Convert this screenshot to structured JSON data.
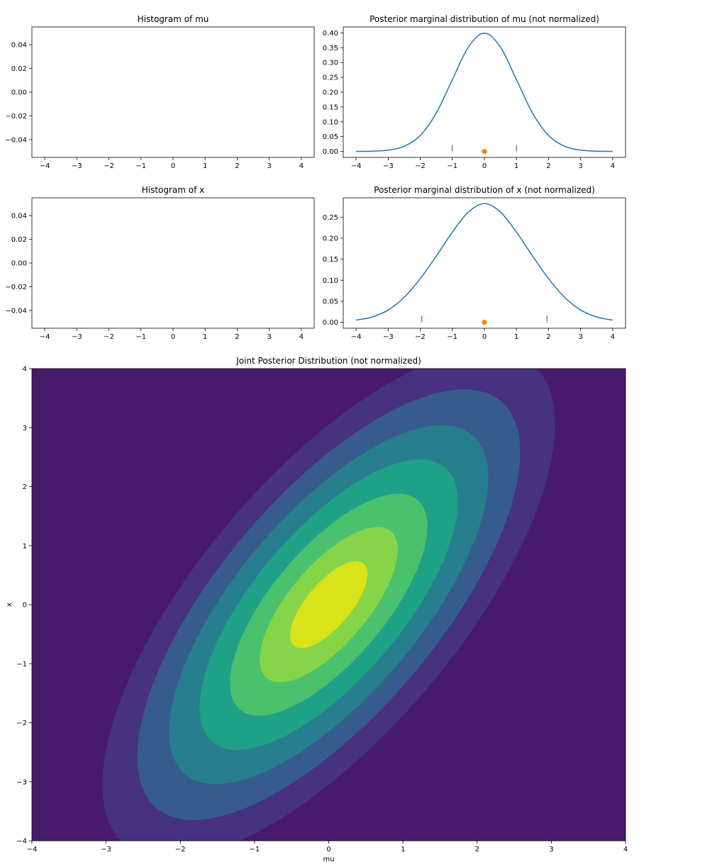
{
  "chart_data": [
    {
      "id": "hist-mu",
      "type": "histogram",
      "title": "Histogram of mu",
      "xlim": [
        -4.4,
        4.4
      ],
      "ylim": [
        -0.055,
        0.055
      ],
      "xticks": [
        -4,
        -3,
        -2,
        -1,
        0,
        1,
        2,
        3,
        4
      ],
      "xtick_labels": [
        "−4",
        "−3",
        "−2",
        "−1",
        "0",
        "1",
        "2",
        "3",
        "4"
      ],
      "yticks": [
        -0.04,
        -0.02,
        0.0,
        0.02,
        0.04
      ],
      "ytick_labels": [
        "−0.04",
        "−0.02",
        "0.00",
        "0.02",
        "0.04"
      ],
      "values": []
    },
    {
      "id": "post-mu",
      "type": "line",
      "title": "Posterior marginal distribution of mu (not normalized)",
      "xlim": [
        -4.4,
        4.4
      ],
      "ylim": [
        -0.02,
        0.42
      ],
      "xticks": [
        -4,
        -3,
        -2,
        -1,
        0,
        1,
        2,
        3,
        4
      ],
      "xtick_labels": [
        "−4",
        "−3",
        "−2",
        "−1",
        "0",
        "1",
        "2",
        "3",
        "4"
      ],
      "yticks": [
        0.0,
        0.05,
        0.1,
        0.15,
        0.2,
        0.25,
        0.3,
        0.35,
        0.4
      ],
      "ytick_labels": [
        "0.00",
        "0.05",
        "0.10",
        "0.15",
        "0.20",
        "0.25",
        "0.30",
        "0.35",
        "0.40"
      ],
      "series": [
        {
          "color": "#1f77b4",
          "x": [
            -4,
            -3.5,
            -3,
            -2.5,
            -2,
            -1.5,
            -1,
            -0.5,
            0,
            0.5,
            1,
            1.5,
            2,
            2.5,
            3,
            3.5,
            4
          ],
          "y": [
            0.0001,
            0.0009,
            0.0044,
            0.0175,
            0.054,
            0.1295,
            0.242,
            0.352,
            0.399,
            0.352,
            0.242,
            0.1295,
            0.054,
            0.0175,
            0.0044,
            0.0009,
            0.0001
          ]
        }
      ],
      "point": {
        "x": 0,
        "y": 0,
        "color": "#ff7f0e"
      },
      "vlines": {
        "x": [
          -1,
          1
        ],
        "y0": 0,
        "y1": 0.022,
        "color": "#008000"
      }
    },
    {
      "id": "hist-x",
      "type": "histogram",
      "title": "Histogram of x",
      "xlim": [
        -4.4,
        4.4
      ],
      "ylim": [
        -0.055,
        0.055
      ],
      "xticks": [
        -4,
        -3,
        -2,
        -1,
        0,
        1,
        2,
        3,
        4
      ],
      "xtick_labels": [
        "−4",
        "−3",
        "−2",
        "−1",
        "0",
        "1",
        "2",
        "3",
        "4"
      ],
      "yticks": [
        -0.04,
        -0.02,
        0.0,
        0.02,
        0.04
      ],
      "ytick_labels": [
        "−0.04",
        "−0.02",
        "0.00",
        "0.02",
        "0.04"
      ],
      "values": []
    },
    {
      "id": "post-x",
      "type": "line",
      "title": "Posterior marginal distribution of x (not normalized)",
      "xlim": [
        -4.4,
        4.4
      ],
      "ylim": [
        -0.0141,
        0.296
      ],
      "xticks": [
        -4,
        -3,
        -2,
        -1,
        0,
        1,
        2,
        3,
        4
      ],
      "xtick_labels": [
        "−4",
        "−3",
        "−2",
        "−1",
        "0",
        "1",
        "2",
        "3",
        "4"
      ],
      "yticks": [
        0.0,
        0.05,
        0.1,
        0.15,
        0.2,
        0.25
      ],
      "ytick_labels": [
        "0.00",
        "0.05",
        "0.10",
        "0.15",
        "0.20",
        "0.25"
      ],
      "series": [
        {
          "color": "#1f77b4",
          "x": [
            -4,
            -3.5,
            -3,
            -2.5,
            -2,
            -1.5,
            -1,
            -0.5,
            0,
            0.5,
            1,
            1.5,
            2,
            2.5,
            3,
            3.5,
            4
          ],
          "y": [
            0.0052,
            0.0127,
            0.0292,
            0.0594,
            0.1037,
            0.1576,
            0.2141,
            0.2622,
            0.2821,
            0.2622,
            0.2141,
            0.1576,
            0.1037,
            0.0594,
            0.0292,
            0.0127,
            0.0052
          ]
        }
      ],
      "point": {
        "x": 0,
        "y": 0,
        "color": "#ff7f0e"
      },
      "vlines": {
        "x": [
          -1.95,
          1.95
        ],
        "y0": 0,
        "y1": 0.016,
        "color": "#008000"
      }
    },
    {
      "id": "joint",
      "type": "contour",
      "title": "Joint Posterior Distribution (not normalized)",
      "xlabel": "mu",
      "ylabel": "x",
      "xlim": [
        -4,
        4
      ],
      "ylim": [
        -4,
        4
      ],
      "xticks": [
        -4,
        -3,
        -2,
        -1,
        0,
        1,
        2,
        3,
        4
      ],
      "xtick_labels": [
        "−4",
        "−3",
        "−2",
        "−1",
        "0",
        "1",
        "2",
        "3",
        "4"
      ],
      "yticks": [
        -4,
        -3,
        -2,
        -1,
        0,
        1,
        2,
        3,
        4
      ],
      "ytick_labels": [
        "−4",
        "−3",
        "−2",
        "−1",
        "0",
        "1",
        "2",
        "3",
        "4"
      ],
      "covariance": [
        [
          1,
          1
        ],
        [
          1,
          2
        ]
      ],
      "mean": [
        0,
        0
      ],
      "levels": [
        {
          "mahalanobis": 3.05,
          "color": "#46327e"
        },
        {
          "mahalanobis": 2.58,
          "color": "#365c8d"
        },
        {
          "mahalanobis": 2.15,
          "color": "#277f8e"
        },
        {
          "mahalanobis": 1.74,
          "color": "#1fa187"
        },
        {
          "mahalanobis": 1.33,
          "color": "#4ac16d"
        },
        {
          "mahalanobis": 0.93,
          "color": "#86d549"
        },
        {
          "mahalanobis": 0.52,
          "color": "#dae319"
        }
      ],
      "background_color": "#481a6c"
    }
  ]
}
